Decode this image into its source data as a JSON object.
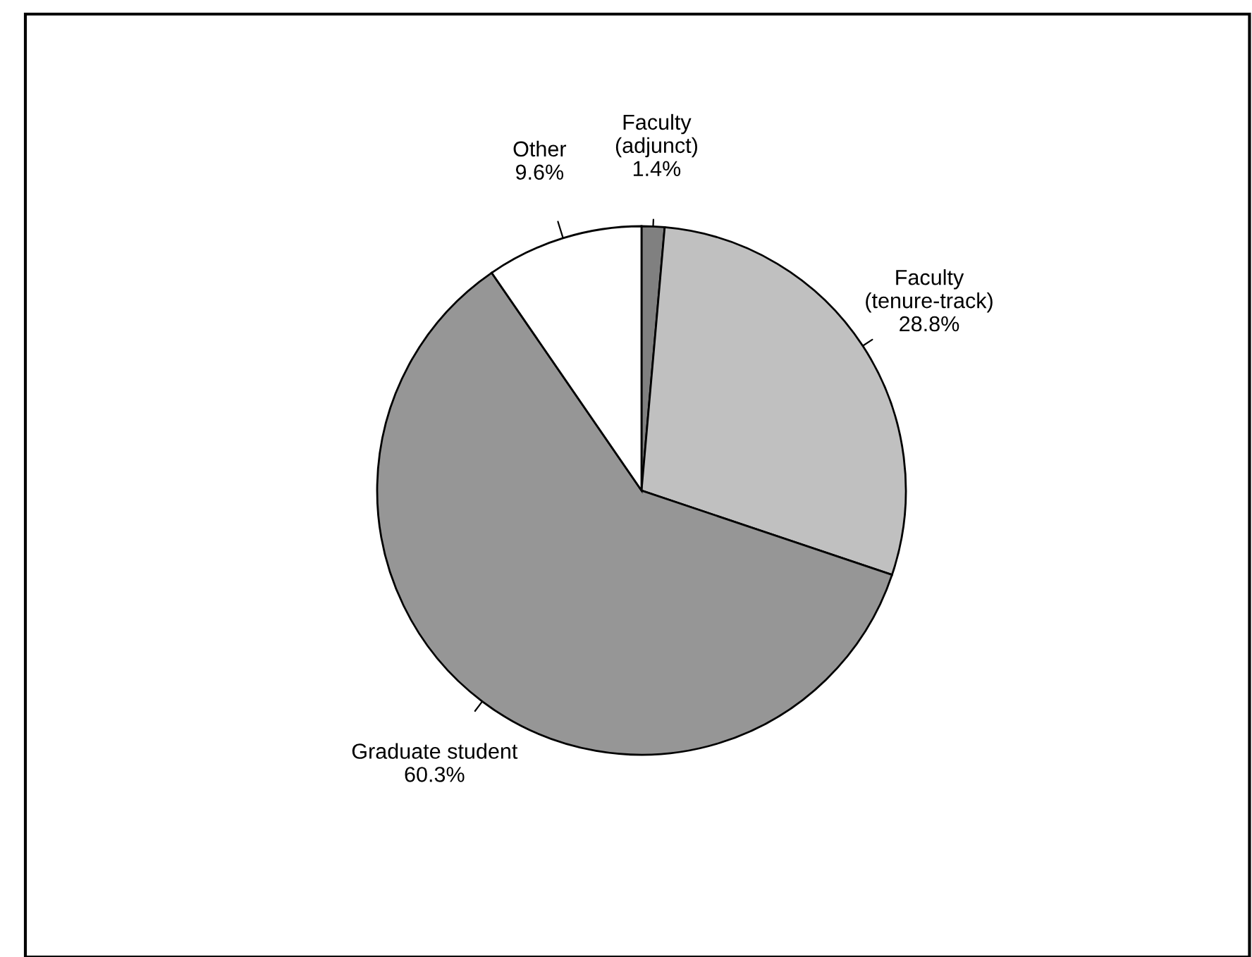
{
  "chart_data": {
    "type": "pie",
    "categories": [
      "Faculty\n(adjunct)",
      "Faculty\n(tenure-track)",
      "Graduate student",
      "Other"
    ],
    "values": [
      1.4,
      28.8,
      60.3,
      9.6
    ],
    "colors": [
      "#808080",
      "#c0c0c0",
      "#969696",
      "#ffffff"
    ],
    "value_labels": [
      "1.4%",
      "28.8%",
      "60.3%",
      "9.6%"
    ],
    "legend": false
  }
}
